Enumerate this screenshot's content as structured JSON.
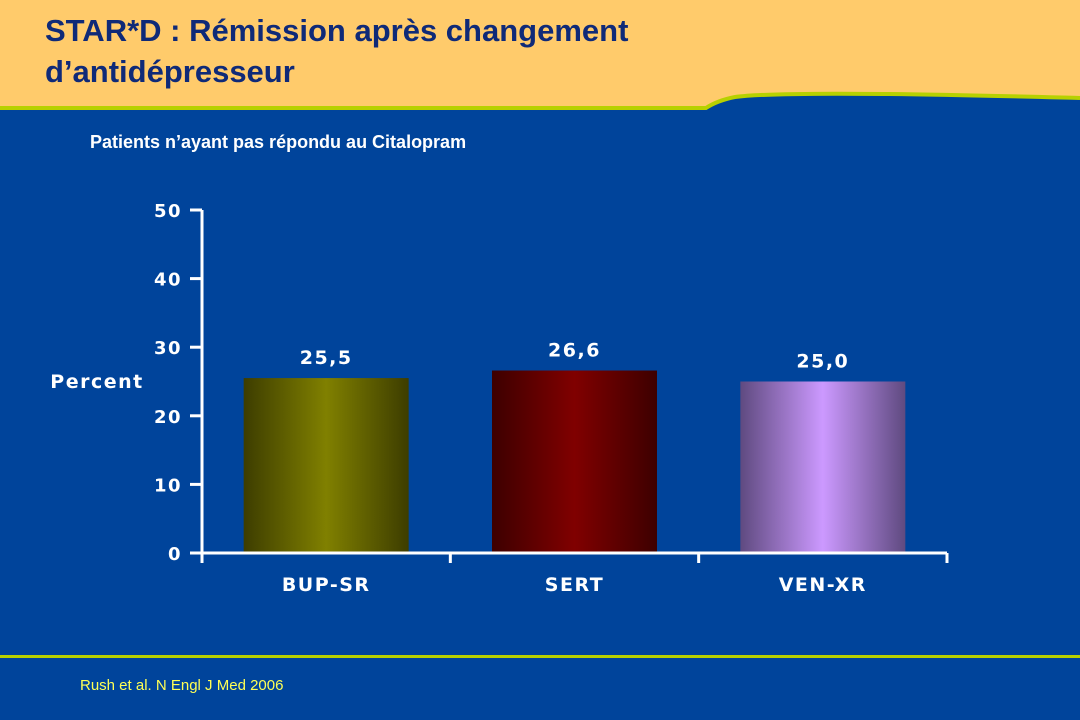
{
  "slide": {
    "title_line1": "STAR*D : Rémission après changement",
    "title_line2": "d’antidépresseur",
    "subtitle": "Patients n’ayant pas répondu au Citalopram",
    "citation": "Rush et al. N Engl J Med 2006"
  },
  "colors": {
    "background": "#00449b",
    "header": "#ffcb6b",
    "accent_line": "#b7d100",
    "title_text": "#0f2a78",
    "citation_text": "#ffff55"
  },
  "chart_data": {
    "type": "bar",
    "title": "",
    "xlabel": "",
    "ylabel": "Percent",
    "categories": [
      "BUP-SR",
      "SERT",
      "VEN-XR"
    ],
    "values": [
      25.5,
      26.6,
      25.0
    ],
    "value_labels": [
      "25,5",
      "26,6",
      "25,0"
    ],
    "ylim": [
      0,
      50
    ],
    "yticks": [
      0,
      10,
      20,
      30,
      40,
      50
    ],
    "bar_colors": [
      {
        "edge": "#3d3d00",
        "center": "#808000"
      },
      {
        "edge": "#3d0000",
        "center": "#800000"
      },
      {
        "edge": "#5f4a80",
        "center": "#cc99ff"
      }
    ],
    "grid": false,
    "legend": "none"
  }
}
